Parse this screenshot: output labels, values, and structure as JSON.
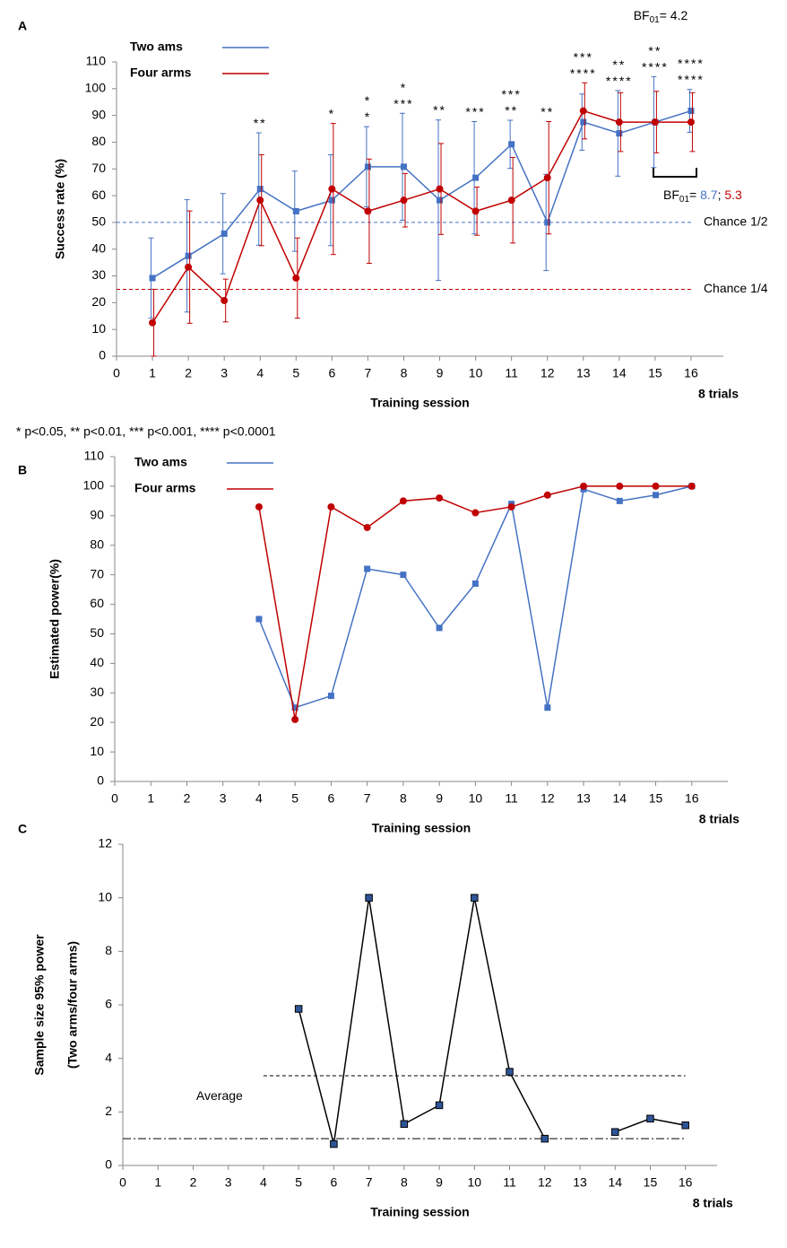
{
  "chart_data": [
    {
      "type": "line",
      "label": "A",
      "ylabel": "Success rate (%)",
      "xlabel": "Training session",
      "x_note": "8 trials",
      "xlim": [
        0,
        16.9
      ],
      "ylim": [
        0,
        110
      ],
      "xticks": [
        0,
        1,
        2,
        3,
        4,
        5,
        6,
        7,
        8,
        9,
        10,
        11,
        12,
        13,
        14,
        15,
        16
      ],
      "yticks": [
        0,
        10,
        20,
        30,
        40,
        50,
        60,
        70,
        80,
        90,
        100,
        110
      ],
      "x": [
        1,
        2,
        3,
        4,
        5,
        6,
        7,
        8,
        9,
        10,
        11,
        12,
        13,
        14,
        15,
        16
      ],
      "legend": true,
      "series": [
        {
          "name": "Two ams",
          "color": "#4472c4",
          "marker": "square",
          "values": [
            29.2,
            37.5,
            45.8,
            62.5,
            54.2,
            58.3,
            70.8,
            70.8,
            58.3,
            66.7,
            79.2,
            50,
            87.5,
            83.3,
            87.5,
            91.7
          ],
          "errors": [
            15,
            21,
            15,
            21,
            15,
            17,
            15,
            20,
            30,
            21,
            9,
            18,
            10.5,
            16,
            17,
            8
          ]
        },
        {
          "name": "Four arms",
          "color": "#c00000",
          "marker": "circle",
          "values": [
            12.5,
            33.3,
            20.8,
            58.3,
            29.2,
            62.5,
            54.2,
            58.3,
            62.5,
            54.2,
            58.3,
            66.7,
            91.7,
            87.5,
            87.5,
            87.5
          ],
          "errors": [
            12.5,
            21,
            8,
            17,
            15,
            24.5,
            19.5,
            10,
            17,
            9,
            16,
            21,
            10.5,
            11,
            11.5,
            11
          ]
        }
      ],
      "ref_lines": [
        {
          "value": 50,
          "from": 0,
          "to": 16,
          "label": "Chance 1/2",
          "color": "#4472c4",
          "style": "dashed"
        },
        {
          "value": 25,
          "from": 0,
          "to": 16,
          "label": "Chance 1/4",
          "color": "#c00000",
          "style": "dashed"
        }
      ],
      "two_arms_stars": [
        {
          "x": 7,
          "text": "*"
        },
        {
          "x": 8,
          "text": "*"
        },
        {
          "x": 11,
          "text": "***"
        },
        {
          "x": 13,
          "text": "***"
        },
        {
          "x": 14,
          "text": "**"
        },
        {
          "x": 15,
          "text": "**"
        },
        {
          "x": 16,
          "text": "****"
        }
      ],
      "four_arms_stars": [
        {
          "x": 4,
          "text": "**"
        },
        {
          "x": 6,
          "text": "*"
        },
        {
          "x": 7,
          "text": "*"
        },
        {
          "x": 8,
          "text": "***"
        },
        {
          "x": 9,
          "text": "**"
        },
        {
          "x": 10,
          "text": "***"
        },
        {
          "x": 11,
          "text": "**"
        },
        {
          "x": 12,
          "text": "**"
        },
        {
          "x": 13,
          "text": "****"
        },
        {
          "x": 14,
          "text": "****"
        },
        {
          "x": 15,
          "text": "****"
        },
        {
          "x": 16,
          "text": "****"
        }
      ],
      "bf_top": {
        "prefix": "BF",
        "sub": "01",
        "text": "= 4.2"
      },
      "bf_bracket": {
        "prefix": "BF",
        "sub": "01",
        "eq": "= ",
        "two_arms": "8.7",
        "sep": "; ",
        "four_arms": "5.3"
      },
      "footnote": "* p<0.05, ** p<0.01, *** p<0.001, **** p<0.0001"
    },
    {
      "type": "line",
      "label": "B",
      "ylabel": "Estimated power(%)",
      "xlabel": "Training session",
      "x_note": "8 trials",
      "xlim": [
        0,
        17
      ],
      "ylim": [
        0,
        110
      ],
      "xticks": [
        0,
        1,
        2,
        3,
        4,
        5,
        6,
        7,
        8,
        9,
        10,
        11,
        12,
        13,
        14,
        15,
        16
      ],
      "yticks": [
        0,
        10,
        20,
        30,
        40,
        50,
        60,
        70,
        80,
        90,
        100,
        110
      ],
      "x": [
        4,
        5,
        6,
        7,
        8,
        9,
        10,
        11,
        12,
        13,
        14,
        15,
        16
      ],
      "legend": true,
      "series": [
        {
          "name": "Two ams",
          "color": "#4472c4",
          "marker": "square",
          "values": [
            55,
            25,
            29,
            72,
            70,
            52,
            67,
            94,
            25,
            99,
            95,
            97,
            100
          ]
        },
        {
          "name": "Four arms",
          "color": "#c00000",
          "marker": "circle",
          "values": [
            93,
            21,
            93,
            86,
            95,
            96,
            91,
            93,
            97,
            100,
            100,
            100,
            100
          ]
        }
      ]
    },
    {
      "type": "line",
      "label": "C",
      "ylabel": [
        "Sample size 95% power",
        "(Two arms/four arms)"
      ],
      "xlabel": "Training session",
      "x_note": "8 trials",
      "xlim": [
        0,
        16.9
      ],
      "ylim": [
        0,
        12
      ],
      "xticks": [
        0,
        1,
        2,
        3,
        4,
        5,
        6,
        7,
        8,
        9,
        10,
        11,
        12,
        13,
        14,
        15,
        16
      ],
      "yticks": [
        0,
        2,
        4,
        6,
        8,
        10,
        12
      ],
      "x": [
        5,
        6,
        7,
        8,
        9,
        10,
        11,
        12,
        13,
        14,
        15,
        16
      ],
      "legend": false,
      "series": [
        {
          "color": "#000000",
          "marker": "square",
          "marker_color": "#2e5597",
          "values": [
            5.85,
            0.8,
            10,
            1.55,
            2.25,
            10,
            3.5,
            1.0,
            null,
            1.25,
            1.75,
            1.5
          ]
        }
      ],
      "ref_lines": [
        {
          "value": 3.35,
          "from": 4,
          "to": 16,
          "label": "Average",
          "color": "#000000",
          "style": "dashed"
        },
        {
          "value": 1,
          "from": 0,
          "to": 16,
          "color": "#000000",
          "style": "dashdot"
        }
      ]
    }
  ]
}
